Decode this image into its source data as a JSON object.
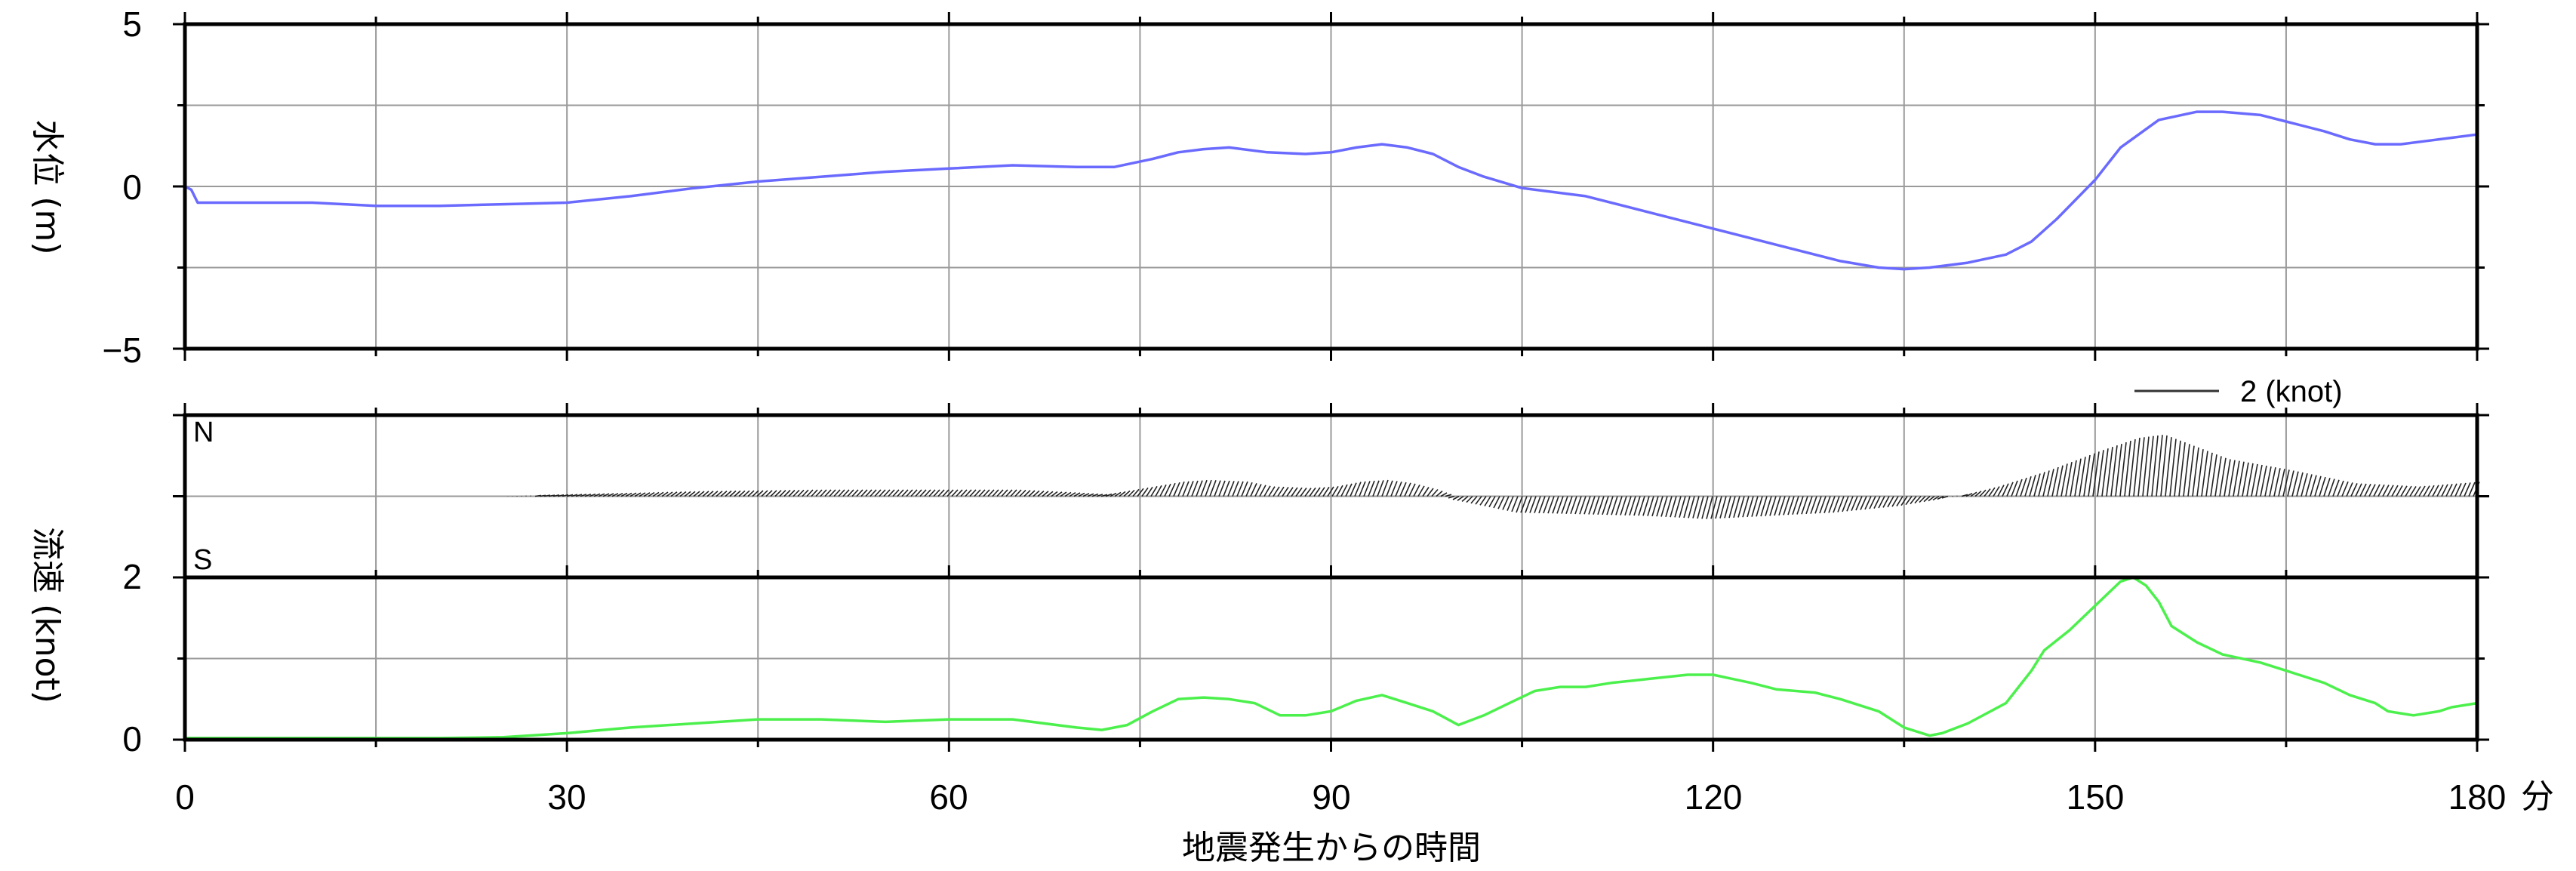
{
  "colors": {
    "water_level": "#6a6aff",
    "speed": "#4cf04c",
    "vectors": "#222222",
    "grid": "#9a9a9a",
    "frame": "#000000"
  },
  "chart_data": [
    {
      "type": "line",
      "panel": "water-level",
      "ylabel": "水位 (m)",
      "xlim": [
        0,
        180
      ],
      "ylim": [
        -5,
        5
      ],
      "yticks": [
        "5",
        "0",
        "−5"
      ],
      "ytick_values": [
        5,
        0,
        -5
      ],
      "grid": true,
      "series": [
        {
          "x": [
            0,
            0.5,
            1,
            2,
            5,
            10,
            15,
            20,
            25,
            30,
            35,
            40,
            45,
            50,
            55,
            60,
            65,
            70,
            73,
            76,
            78,
            80,
            82,
            85,
            88,
            90,
            92,
            94,
            96,
            98,
            100,
            102,
            105,
            110,
            115,
            120,
            125,
            130,
            133,
            135,
            137,
            140,
            143,
            145,
            147,
            150,
            152,
            155,
            158,
            160,
            163,
            165,
            168,
            170,
            172,
            174,
            176,
            178,
            180
          ],
          "values": [
            0,
            -0.1,
            -0.5,
            -0.5,
            -0.5,
            -0.5,
            -0.6,
            -0.6,
            -0.55,
            -0.5,
            -0.3,
            -0.05,
            0.15,
            0.3,
            0.45,
            0.55,
            0.65,
            0.6,
            0.6,
            0.85,
            1.05,
            1.15,
            1.2,
            1.05,
            1.0,
            1.05,
            1.2,
            1.3,
            1.2,
            1.0,
            0.6,
            0.3,
            -0.05,
            -0.3,
            -0.8,
            -1.3,
            -1.8,
            -2.3,
            -2.5,
            -2.55,
            -2.5,
            -2.35,
            -2.1,
            -1.7,
            -1.0,
            0.2,
            1.2,
            2.05,
            2.3,
            2.3,
            2.2,
            2.0,
            1.7,
            1.45,
            1.3,
            1.3,
            1.4,
            1.5,
            1.6
          ]
        }
      ]
    },
    {
      "type": "area",
      "panel": "current-vectors",
      "ylabel": "流速 (knot)",
      "labels": {
        "north": "N",
        "south": "S"
      },
      "legend": "2 (knot)",
      "legend_value": 2,
      "xlim": [
        0,
        180
      ],
      "series": [
        {
          "x": [
            0,
            25,
            30,
            40,
            50,
            60,
            65,
            70,
            72,
            75,
            78,
            80,
            83,
            85,
            88,
            90,
            92,
            94,
            96,
            98,
            100,
            105,
            110,
            115,
            120,
            125,
            130,
            135,
            138,
            142,
            146,
            150,
            153,
            155,
            157,
            160,
            165,
            170,
            175,
            180
          ],
          "values": [
            0,
            0,
            0.05,
            0.15,
            0.2,
            0.2,
            0.2,
            0.1,
            0.05,
            0.25,
            0.45,
            0.5,
            0.45,
            0.3,
            0.25,
            0.3,
            0.45,
            0.5,
            0.4,
            0.2,
            -0.1,
            -0.5,
            -0.55,
            -0.6,
            -0.7,
            -0.6,
            -0.5,
            -0.3,
            -0.1,
            0.3,
            0.8,
            1.4,
            1.8,
            1.9,
            1.6,
            1.15,
            0.8,
            0.4,
            0.3,
            0.45
          ]
        }
      ]
    },
    {
      "type": "line",
      "panel": "current-speed",
      "xlabel": "地震発生からの時間",
      "xunit": "分",
      "xlim": [
        0,
        180
      ],
      "ylim": [
        0,
        2
      ],
      "xticks": [
        "0",
        "30",
        "60",
        "90",
        "120",
        "150",
        "180"
      ],
      "xtick_values": [
        0,
        30,
        60,
        90,
        120,
        150,
        180
      ],
      "yticks": [
        "2",
        "0"
      ],
      "ytick_values": [
        2,
        0
      ],
      "grid": true,
      "series": [
        {
          "x": [
            0,
            20,
            25,
            30,
            35,
            40,
            45,
            50,
            55,
            60,
            65,
            70,
            72,
            74,
            76,
            78,
            80,
            82,
            84,
            86,
            88,
            90,
            92,
            94,
            96,
            98,
            100,
            102,
            104,
            106,
            108,
            110,
            112,
            115,
            118,
            120,
            123,
            125,
            128,
            130,
            133,
            135,
            137,
            138,
            140,
            143,
            145,
            146,
            148,
            150,
            152,
            153,
            154,
            155,
            156,
            158,
            160,
            163,
            165,
            168,
            170,
            172,
            173,
            175,
            177,
            178,
            180
          ],
          "values": [
            0.02,
            0.02,
            0.03,
            0.08,
            0.15,
            0.2,
            0.25,
            0.25,
            0.22,
            0.25,
            0.25,
            0.15,
            0.12,
            0.18,
            0.35,
            0.5,
            0.52,
            0.5,
            0.45,
            0.3,
            0.3,
            0.35,
            0.48,
            0.55,
            0.45,
            0.35,
            0.18,
            0.3,
            0.45,
            0.6,
            0.65,
            0.65,
            0.7,
            0.75,
            0.8,
            0.8,
            0.7,
            0.62,
            0.58,
            0.5,
            0.35,
            0.15,
            0.05,
            0.08,
            0.2,
            0.45,
            0.85,
            1.1,
            1.35,
            1.65,
            1.95,
            2.0,
            1.9,
            1.7,
            1.4,
            1.2,
            1.05,
            0.95,
            0.85,
            0.7,
            0.55,
            0.45,
            0.35,
            0.3,
            0.35,
            0.4,
            0.45
          ]
        }
      ]
    }
  ]
}
